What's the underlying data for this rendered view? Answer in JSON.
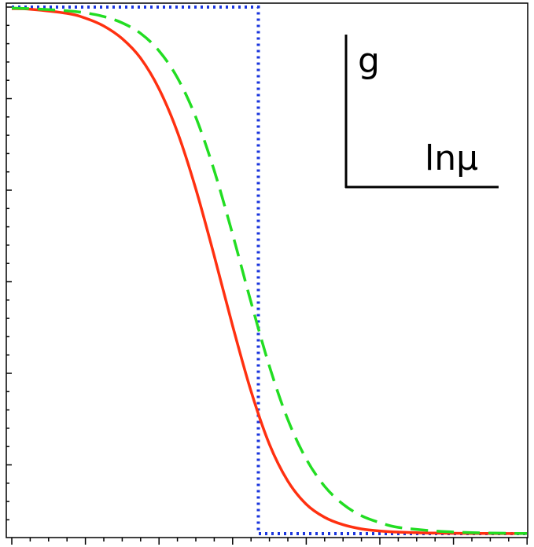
{
  "chart_data": {
    "type": "line",
    "title": "",
    "xlabel": "",
    "ylabel": "",
    "xlim": [
      -6.5,
      7.5
    ],
    "ylim": [
      0,
      1
    ],
    "grid": false,
    "inset_axes_labels": {
      "y": "g",
      "x": "lnμ"
    },
    "series": [
      {
        "style": "solid",
        "color": "#ff3010",
        "x": [
          -6.5,
          -6,
          -5,
          -4.5,
          -4,
          -3.5,
          -3,
          -2.5,
          -2,
          -1.5,
          -1,
          -0.5,
          0,
          0.5,
          1,
          1.5,
          2,
          2.5,
          3,
          3.5,
          4,
          5,
          6,
          7,
          7.5
        ],
        "y": [
          0.997,
          0.996,
          0.988,
          0.979,
          0.964,
          0.94,
          0.903,
          0.845,
          0.763,
          0.655,
          0.528,
          0.395,
          0.271,
          0.17,
          0.1,
          0.056,
          0.031,
          0.017,
          0.009,
          0.005,
          0.003,
          0.001,
          0.0005,
          0.0002,
          0.0001
        ]
      },
      {
        "style": "dashed",
        "color": "#22dd22",
        "x": [
          -6.5,
          -6,
          -5,
          -4.5,
          -4,
          -3.5,
          -3,
          -2.5,
          -2,
          -1.5,
          -1,
          -0.5,
          0,
          0.5,
          1,
          1.5,
          2,
          2.5,
          3,
          3.5,
          4,
          5,
          6,
          7,
          7.5
        ],
        "y": [
          0.998,
          0.997,
          0.993,
          0.989,
          0.982,
          0.97,
          0.95,
          0.917,
          0.866,
          0.791,
          0.69,
          0.569,
          0.44,
          0.318,
          0.217,
          0.142,
          0.09,
          0.056,
          0.034,
          0.021,
          0.012,
          0.005,
          0.002,
          0.0006,
          0.0003
        ]
      },
      {
        "style": "dotted",
        "color": "#1a35dd",
        "x": [
          -6.5,
          0.2,
          0.2,
          7.5
        ],
        "y": [
          1,
          1,
          0,
          0
        ]
      }
    ]
  }
}
